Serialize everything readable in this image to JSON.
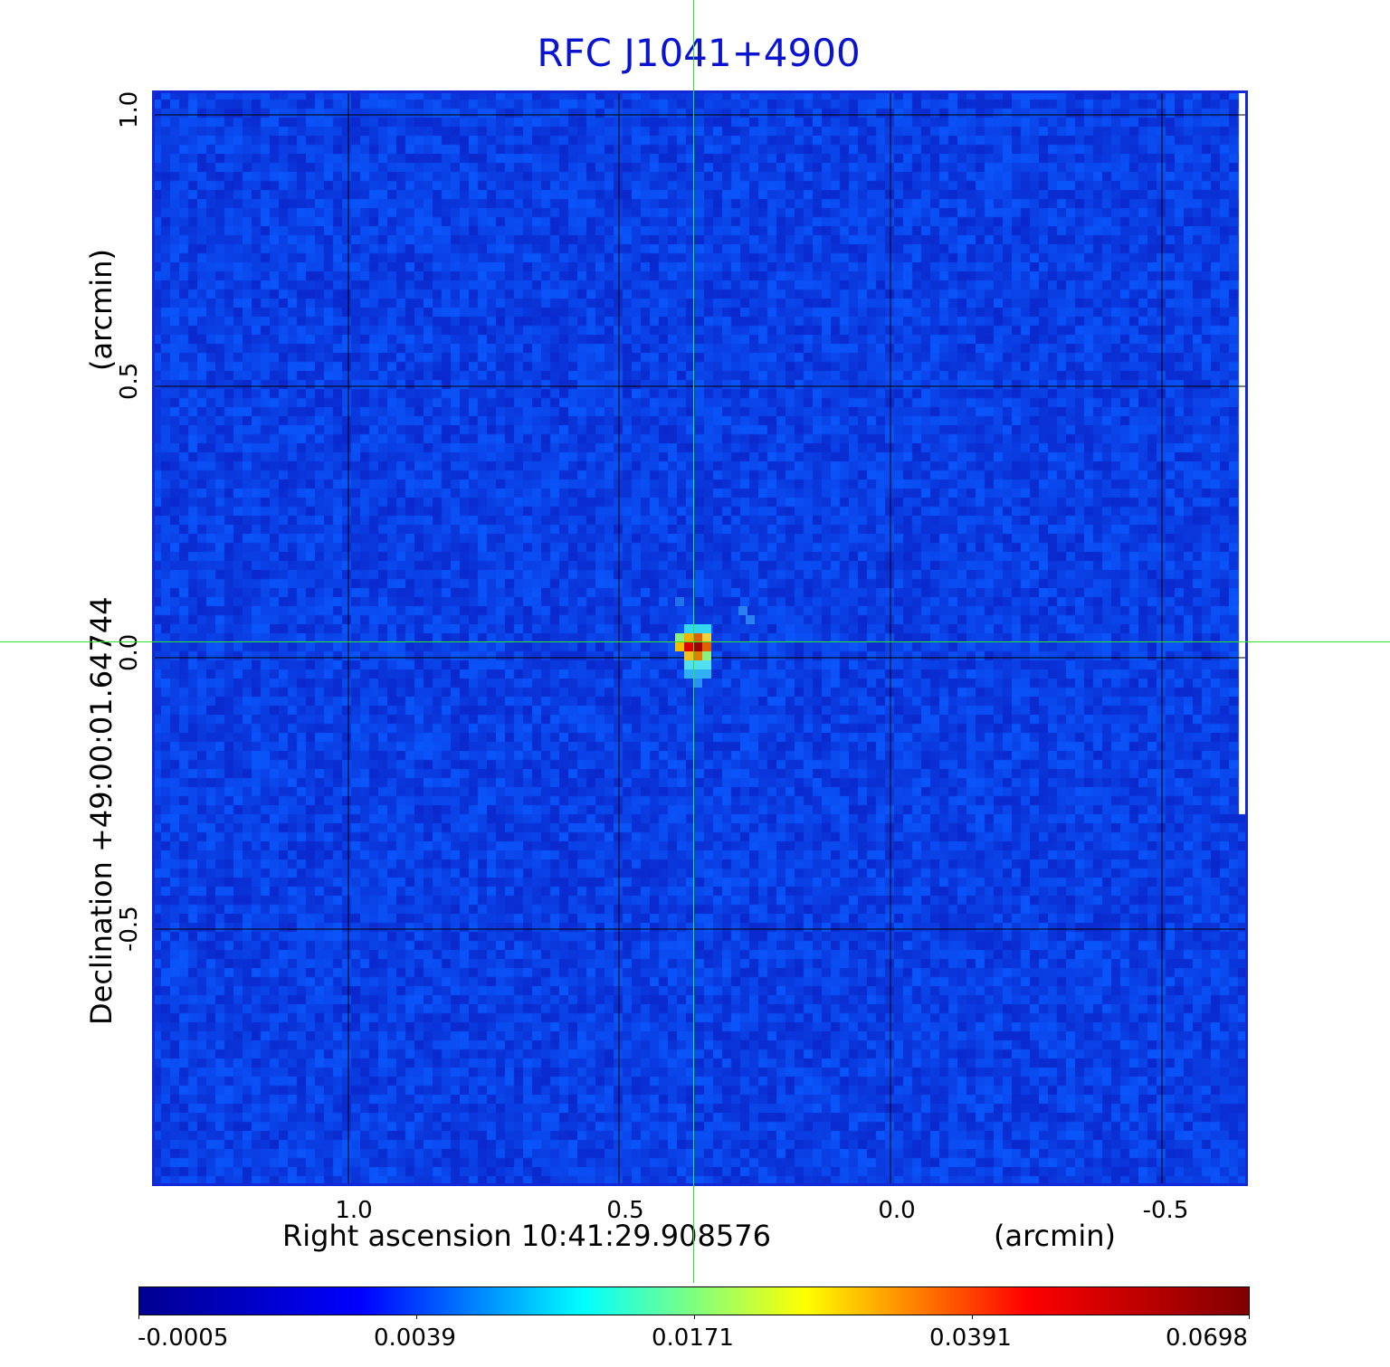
{
  "title": "RFC J1041+4900",
  "image": {
    "colormap": "jet",
    "background_color": "#1040e8",
    "frame_color": "#1428d8",
    "crosshair_color": "#31e231",
    "grid_color": "#000000",
    "source": {
      "label": "compact bright source at map center",
      "peak_color": "#c80000"
    }
  },
  "axes": {
    "x_label": "Right ascension  10:41:29.908576",
    "x_unit": "(arcmin)",
    "y_label": "Declination  +49:00:01.64744",
    "y_unit": "(arcmin)",
    "x_ticks": [
      "1.0",
      "0.5",
      "0.0",
      "-0.5"
    ],
    "y_ticks": [
      "1.0",
      "0.5",
      "0.0",
      "-0.5"
    ]
  },
  "colorbar": {
    "ticks": [
      "-0.0005",
      "0.0039",
      "0.0171",
      "0.0391",
      "0.0698"
    ],
    "stops": [
      "#00008f",
      "#0000ff",
      "#00ffff",
      "#ffff00",
      "#ff0000",
      "#800000"
    ]
  }
}
